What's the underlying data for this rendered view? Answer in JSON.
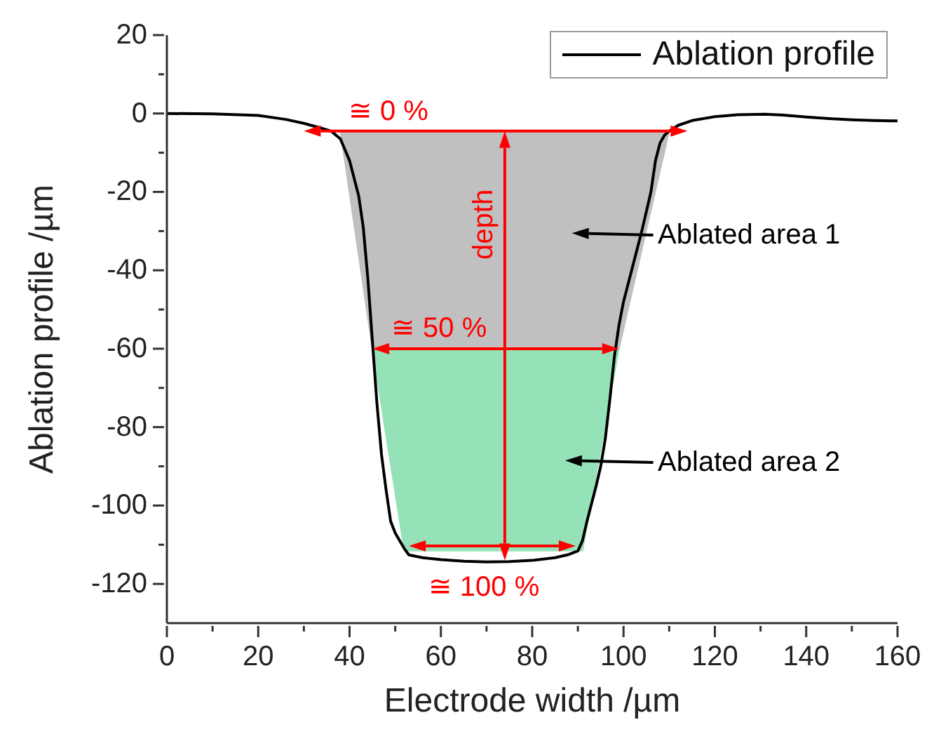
{
  "chart_data": {
    "type": "line",
    "xlabel": "Electrode width /µm",
    "ylabel": "Ablation profile /µm",
    "xlim": [
      0,
      160
    ],
    "ylim": [
      -130,
      20
    ],
    "xticks": [
      0,
      {
        "value": 10,
        "label": null
      },
      20,
      {
        "value": 30,
        "label": null
      },
      40,
      {
        "value": 50,
        "label": null
      },
      60,
      {
        "value": 70,
        "label": null
      },
      80,
      {
        "value": 90,
        "label": null
      },
      100,
      {
        "value": 110,
        "label": null
      },
      120,
      {
        "value": 130,
        "label": null
      },
      140,
      {
        "value": 150,
        "label": null
      },
      160
    ],
    "yticks": [
      -120,
      {
        "value": -110,
        "label": null
      },
      -100,
      {
        "value": -90,
        "label": null
      },
      -80,
      {
        "value": -70,
        "label": null
      },
      -60,
      {
        "value": -50,
        "label": null
      },
      -40,
      {
        "value": -30,
        "label": null
      },
      -20,
      {
        "value": -10,
        "label": null
      },
      0,
      {
        "value": 10,
        "label": null
      },
      20
    ],
    "legend": "top right",
    "marker": "none",
    "line_style": "solid",
    "series": [
      {
        "type": "area",
        "color": "#c0c0c0",
        "x": [
          38,
          45,
          99,
          110
        ],
        "values": [
          -4.5,
          -60,
          -60,
          -4.5
        ]
      },
      {
        "type": "area",
        "color": "#96e2b8",
        "x": [
          45,
          52,
          91,
          99
        ],
        "values": [
          -60,
          -111.5,
          -111.5,
          -60
        ]
      },
      {
        "name": "Ablation profile",
        "color": "#000000",
        "x": [
          0,
          10,
          20,
          26,
          30,
          34,
          36,
          38,
          40,
          42,
          43,
          44,
          45,
          46,
          47,
          48,
          49,
          50,
          51,
          52,
          53,
          56,
          60,
          65,
          70,
          75,
          80,
          85,
          88,
          90,
          91,
          92,
          94,
          95,
          96,
          97,
          98,
          99,
          100,
          102,
          104,
          106,
          107,
          108,
          109,
          110,
          112,
          115,
          120,
          125,
          131,
          135,
          140,
          145,
          150,
          155,
          160
        ],
        "values": [
          0,
          -0.1,
          -0.5,
          -1.5,
          -2.5,
          -3.8,
          -4.5,
          -6.5,
          -12,
          -21,
          -29,
          -42,
          -58,
          -74,
          -87,
          -96,
          -104,
          -107,
          -109,
          -111,
          -112.6,
          -113.3,
          -113.8,
          -114.2,
          -114.4,
          -114.3,
          -114,
          -113.3,
          -112.5,
          -111.6,
          -109,
          -104,
          -95,
          -90,
          -83,
          -73,
          -62,
          -54,
          -48,
          -39,
          -30,
          -20,
          -12,
          -7.5,
          -5.5,
          -4.5,
          -3,
          -1.8,
          -0.8,
          -0.3,
          -0.2,
          -0.4,
          -0.9,
          -1.3,
          -1.6,
          -1.8,
          -1.9
        ]
      }
    ],
    "annotations": [
      "≅ 0 %",
      "≅ 50 %",
      "≅ 100 %",
      "depth",
      "Ablated area 1",
      "Ablated area 2"
    ]
  }
}
